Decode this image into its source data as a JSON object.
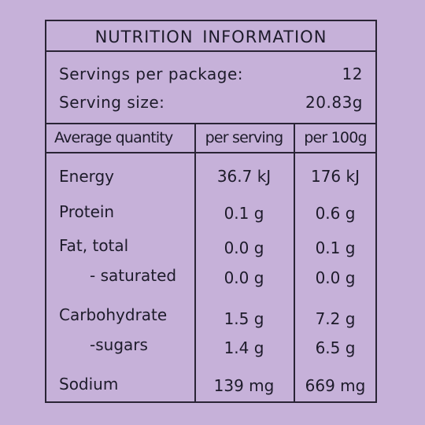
{
  "panel": {
    "title": "NUTRITION INFORMATION",
    "servings": [
      {
        "label": "Servings per package:",
        "value": "12"
      },
      {
        "label": "Serving size:",
        "value": "20.83g"
      }
    ],
    "headers": [
      "Average quantity",
      "per serving",
      "per 100g"
    ],
    "rows": [
      {
        "name": "Energy",
        "per_serving": "36.7 kJ",
        "per_100g": "176 kJ"
      },
      {
        "name": "Protein",
        "per_serving": "0.1 g",
        "per_100g": "0.6 g"
      },
      {
        "name": "Fat, total",
        "per_serving": "0.0 g",
        "per_100g": "0.1 g"
      },
      {
        "name": "- saturated",
        "per_serving": "0.0 g",
        "per_100g": "0.0 g"
      },
      {
        "name": "Carbohydrate",
        "per_serving": "1.5 g",
        "per_100g": "7.2 g"
      },
      {
        "name": "-sugars",
        "per_serving": "1.4 g",
        "per_100g": "6.5 g"
      },
      {
        "name": "Sodium",
        "per_serving": "139 mg",
        "per_100g": "669 mg"
      }
    ]
  },
  "colors": {
    "background": "#c6b1d9",
    "border": "#2a2435",
    "text": "#1d1b2a"
  }
}
